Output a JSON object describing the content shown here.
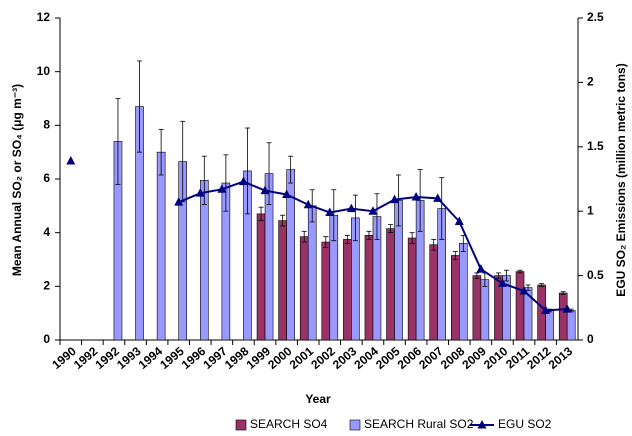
{
  "chart_data": {
    "type": "bar",
    "x_label": "Year",
    "y_label": "Mean Annual SO₂ or SO₄ (μg m⁻³)",
    "y2_label": "EGU SO₂ Emissions (million metric tons)",
    "categories": [
      "1990",
      "1992",
      "1992",
      "1993",
      "1994",
      "1995",
      "1996",
      "1997",
      "1998",
      "1999",
      "2000",
      "2001",
      "2002",
      "2003",
      "2004",
      "2005",
      "2006",
      "2007",
      "2008",
      "2009",
      "2010",
      "2011",
      "2012",
      "2013"
    ],
    "ylim": [
      0,
      12
    ],
    "yticks": [
      0,
      2,
      4,
      6,
      8,
      10,
      12
    ],
    "y2lim": [
      0,
      2.5
    ],
    "y2ticks": [
      0,
      0.5,
      1,
      1.5,
      2,
      2.5
    ],
    "grid": false,
    "legend": "bottom",
    "series": [
      {
        "name": "SEARCH SO4",
        "type": "bar",
        "color": "#993366",
        "values": [
          null,
          null,
          null,
          null,
          null,
          null,
          null,
          null,
          null,
          4.7,
          4.45,
          3.85,
          3.65,
          3.75,
          3.9,
          4.15,
          3.8,
          3.55,
          3.15,
          2.4,
          2.4,
          2.55,
          2.05,
          1.75
        ],
        "errors": [
          null,
          null,
          null,
          null,
          null,
          null,
          null,
          null,
          null,
          0.25,
          0.2,
          0.2,
          0.2,
          0.15,
          0.15,
          0.15,
          0.2,
          0.2,
          0.15,
          0.1,
          0.1,
          0.05,
          0.05,
          0.05
        ]
      },
      {
        "name": "SEARCH Rural SO2",
        "type": "bar",
        "color": "#9999ff",
        "values": [
          null,
          null,
          7.4,
          8.7,
          7.0,
          6.65,
          5.95,
          5.85,
          6.3,
          6.2,
          6.35,
          5.0,
          4.65,
          4.55,
          4.6,
          5.2,
          5.2,
          4.9,
          3.6,
          2.25,
          2.4,
          1.95,
          1.1,
          1.1
        ],
        "errors": [
          null,
          null,
          1.6,
          1.7,
          0.85,
          1.5,
          0.9,
          1.05,
          1.6,
          1.15,
          0.5,
          0.6,
          0.95,
          0.85,
          0.85,
          0.95,
          1.15,
          1.15,
          0.3,
          0.25,
          0.2,
          0.1,
          0.05,
          0.05
        ]
      },
      {
        "name": "EGU SO2",
        "type": "line",
        "axis": "y2",
        "color": "#000080",
        "values": [
          1.39,
          null,
          null,
          null,
          null,
          1.07,
          1.14,
          1.17,
          1.23,
          1.16,
          1.13,
          1.05,
          0.99,
          1.02,
          1.0,
          1.09,
          1.11,
          1.1,
          0.92,
          0.55,
          0.44,
          0.38,
          0.23,
          0.24
        ]
      }
    ]
  }
}
